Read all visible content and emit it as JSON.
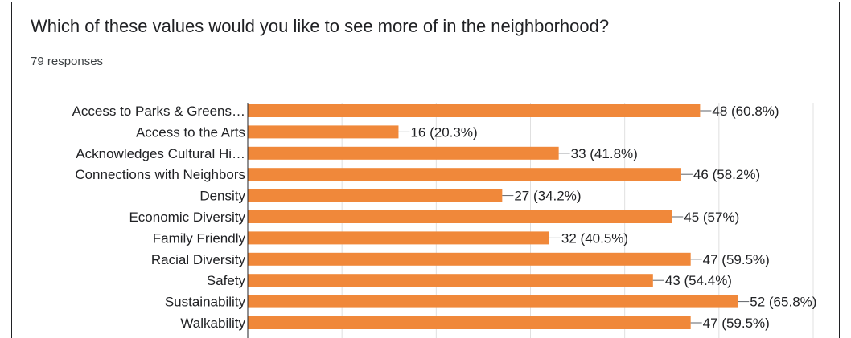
{
  "header": {
    "title": "Which of these values would you like to see more of in the neighborhood?",
    "responses": "79 responses"
  },
  "colors": {
    "bar": "#f0883a",
    "grid": "#e0e0e0",
    "axis": "#202124"
  },
  "chart_data": {
    "type": "bar",
    "orientation": "horizontal",
    "title": "Which of these values would you like to see more of in the neighborhood?",
    "categories": [
      "Access to Parks & Greens…",
      "Access to the Arts",
      "Acknowledges Cultural Hi…",
      "Connections with Neighbors",
      "Density",
      "Economic Diversity",
      "Family Friendly",
      "Racial Diversity",
      "Safety",
      "Sustainability",
      "Walkability"
    ],
    "values": [
      48,
      16,
      33,
      46,
      27,
      45,
      32,
      47,
      43,
      52,
      47
    ],
    "value_labels": [
      "48 (60.8%)",
      "16 (20.3%)",
      "33 (41.8%)",
      "46 (58.2%)",
      "27 (34.2%)",
      "45 (57%)",
      "32 (40.5%)",
      "47 (59.5%)",
      "43 (54.4%)",
      "52 (65.8%)",
      "47 (59.5%)"
    ],
    "xlim": [
      0,
      60
    ],
    "grid": true,
    "legend": "none"
  }
}
